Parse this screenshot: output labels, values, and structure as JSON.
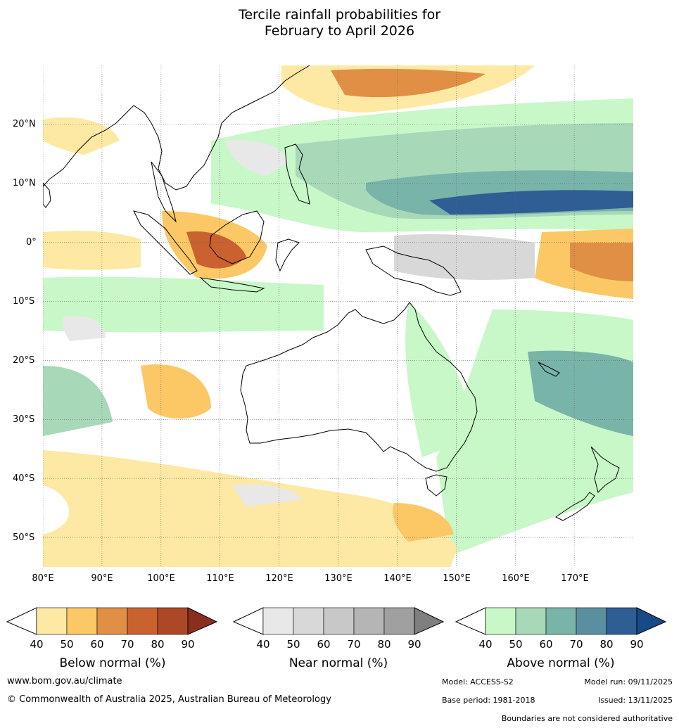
{
  "title": {
    "line1": "Tercile rainfall probabilities for",
    "line2": "February to April 2026"
  },
  "map": {
    "lon_range": [
      80,
      180
    ],
    "lat_range": [
      -55,
      30
    ],
    "lat_labels": [
      "20°N",
      "10°N",
      "0°",
      "10°S",
      "20°S",
      "30°S",
      "40°S",
      "50°S"
    ],
    "lon_labels": [
      "80°E",
      "90°E",
      "100°E",
      "110°E",
      "120°E",
      "130°E",
      "140°E",
      "150°E",
      "160°E",
      "170°E"
    ]
  },
  "colorbars": [
    {
      "name": "below",
      "label": "Below normal (%)",
      "ticks": [
        "40",
        "50",
        "60",
        "70",
        "80",
        "90"
      ],
      "colors": [
        "#fde9a3",
        "#fcc866",
        "#e08f45",
        "#c9622f",
        "#ad4827"
      ],
      "over": "#8a2f1e"
    },
    {
      "name": "near",
      "label": "Near normal (%)",
      "ticks": [
        "40",
        "50",
        "60",
        "70",
        "80",
        "90"
      ],
      "colors": [
        "#e8e8e8",
        "#d8d8d8",
        "#c8c8c8",
        "#b5b5b5",
        "#a0a0a0"
      ],
      "over": "#7f7f7f"
    },
    {
      "name": "above",
      "label": "Above normal (%)",
      "ticks": [
        "40",
        "50",
        "60",
        "70",
        "80",
        "90"
      ],
      "colors": [
        "#c8f8c8",
        "#a7d9b9",
        "#79b4a9",
        "#5a8fa0",
        "#2e5e93"
      ],
      "over": "#174a86"
    }
  ],
  "footer": {
    "website": "www.bom.gov.au/climate",
    "copyright": "© Commonwealth of Australia 2025, Australian Bureau of Meteorology",
    "model": "Model: ACCESS-S2",
    "model_run": "Model run: 09/11/2025",
    "base_period": "Base period: 1981-2018",
    "issued": "Issued: 13/11/2025",
    "disclaimer": "Boundaries are not considered authoritative"
  }
}
